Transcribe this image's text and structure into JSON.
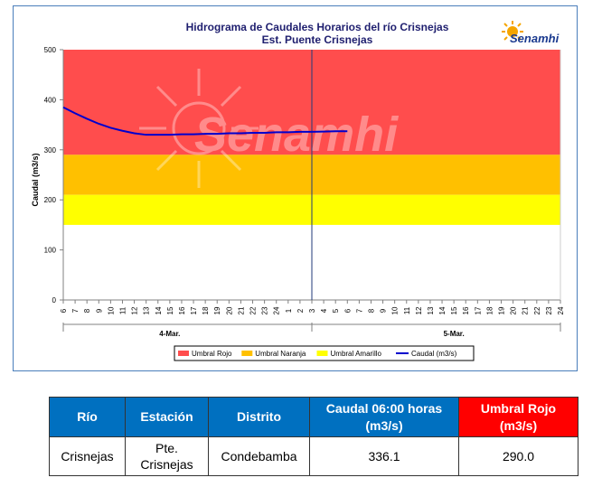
{
  "chart_data": {
    "type": "line",
    "title": "Hidrograma de Caudales Horarios del río Crisnejas",
    "subtitle": "Est. Puente Crisnejas",
    "logo_text": "Senamhi",
    "watermark_text": "Senamhi",
    "ylabel": "Caudal  (m3/s)",
    "ylim": [
      0,
      500
    ],
    "yticks": [
      "0",
      "100",
      "200",
      "300",
      "400",
      "500"
    ],
    "xlim": [
      6,
      48
    ],
    "x_tick_labels": [
      "6",
      "7",
      "8",
      "9",
      "10",
      "11",
      "12",
      "13",
      "14",
      "15",
      "16",
      "17",
      "18",
      "19",
      "20",
      "21",
      "22",
      "23",
      "24",
      "1",
      "2",
      "3",
      "4",
      "5",
      "6",
      "7",
      "8",
      "9",
      "10",
      "11",
      "12",
      "13",
      "14",
      "15",
      "16",
      "17",
      "18",
      "19",
      "20",
      "21",
      "22",
      "23",
      "24"
    ],
    "day_labels": [
      {
        "label": "4-Mar.",
        "x": 15
      },
      {
        "label": "5-Mar.",
        "x": 39
      }
    ],
    "current_time_x": 27,
    "bands": [
      {
        "name": "Umbral Rojo",
        "from": 290,
        "to": 500,
        "color": "#ff4d4d"
      },
      {
        "name": "Umbral Naranja",
        "from": 210,
        "to": 290,
        "color": "#ffc000"
      },
      {
        "name": "Umbral Amarillo",
        "from": 150,
        "to": 210,
        "color": "#ffff00"
      }
    ],
    "series": [
      {
        "name": "Caudal (m3/s)",
        "color": "#0000cd",
        "x": [
          6,
          7,
          8,
          9,
          10,
          11,
          12,
          13,
          14,
          15,
          16,
          17,
          18,
          19,
          20,
          21,
          22,
          23,
          24,
          25,
          26,
          27,
          28,
          29,
          30
        ],
        "y": [
          385,
          373,
          362,
          352,
          344,
          338,
          333,
          330,
          330,
          330,
          331,
          331,
          332,
          332,
          333,
          333,
          334,
          334,
          335,
          335,
          336,
          336,
          336.5,
          337,
          337
        ]
      }
    ],
    "legend": [
      "Umbral Rojo",
      "Umbral Naranja",
      "Umbral Amarillo",
      "Caudal (m3/s)"
    ],
    "grid": false,
    "legend_position": "bottom"
  },
  "table": {
    "headers": [
      "Río",
      "Estación",
      "Distrito",
      "Caudal  06:00 horas\n(m3/s)",
      "Umbral Rojo\n(m3/s)"
    ],
    "rows": [
      [
        "Crisnejas",
        "Pte.\nCrisnejas",
        "Condebamba",
        "336.1",
        "290.0"
      ]
    ]
  }
}
